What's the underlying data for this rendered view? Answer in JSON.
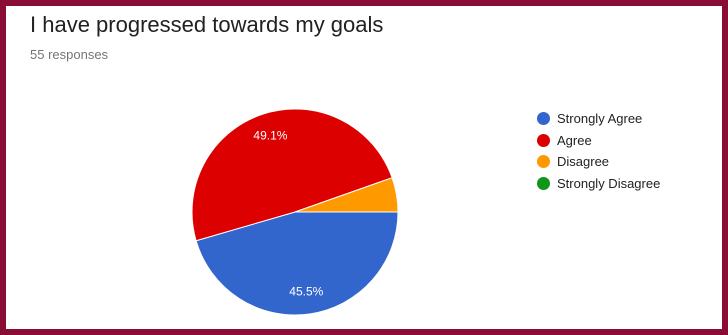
{
  "question": {
    "title": "I have progressed towards my goals",
    "responses": "55 responses"
  },
  "chart_data": {
    "type": "pie",
    "title": "I have progressed towards my goals",
    "subtitle": "55 responses",
    "categories": [
      "Strongly Agree",
      "Agree",
      "Disagree",
      "Strongly Disagree"
    ],
    "values": [
      45.5,
      49.1,
      5.4,
      0
    ],
    "value_labels": [
      "45.5%",
      "49.1%",
      "",
      ""
    ],
    "colors": [
      "#3366cc",
      "#dc0000",
      "#ff9900",
      "#109618"
    ],
    "legend_position": "right"
  }
}
